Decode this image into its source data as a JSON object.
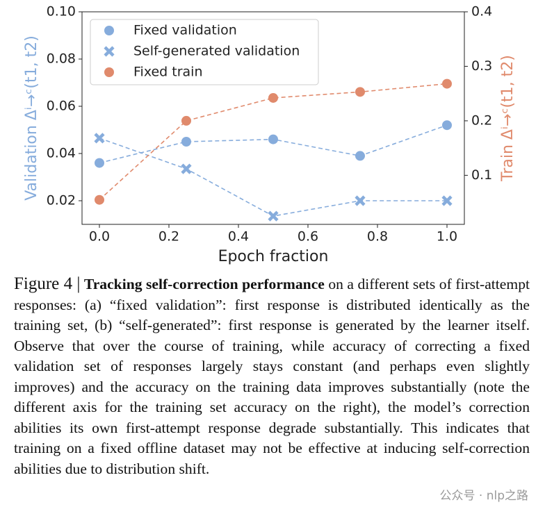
{
  "chart_data": {
    "type": "line",
    "xlabel": "Epoch fraction",
    "ylabel": "Validation Δⁱ→ᶜ(t1, t2)",
    "y2label": "Train Δⁱ→ᶜ(t1, t2)",
    "x": [
      0,
      0.25,
      0.5,
      0.75,
      1.0
    ],
    "xlim": [
      -0.05,
      1.05
    ],
    "xticks": [
      {
        "value": 0,
        "label": "0.0"
      },
      0.2,
      0.4,
      0.6,
      0.8,
      {
        "value": 1,
        "label": "1.0"
      }
    ],
    "ylim": [
      0.01,
      0.1
    ],
    "yticks": [
      0.02,
      0.04,
      0.06,
      0.08,
      {
        "value": 0.1,
        "label": "0.10"
      }
    ],
    "y2lim": [
      0.01,
      0.4
    ],
    "y2ticks": [
      0.1,
      0.2,
      0.3,
      0.4
    ],
    "ylabel_color": "#86acdc",
    "y2label_color": "#e08a6c",
    "linestyle": "dashed",
    "legend": "upper left",
    "series": [
      {
        "name": "Fixed validation",
        "color": "#86acdc",
        "marker": "circle",
        "values": [
          0.036,
          0.045,
          0.046,
          0.039,
          0.052
        ]
      },
      {
        "name": "Self-generated validation",
        "color": "#86acdc",
        "marker": "x",
        "values": [
          0.0465,
          0.0335,
          0.0135,
          0.02,
          0.02
        ]
      },
      {
        "name": "Fixed train",
        "color": "#e08a6c",
        "marker": "circle",
        "axis": "y2",
        "values": [
          0.055,
          0.2,
          0.242,
          0.253,
          0.268
        ]
      }
    ]
  },
  "caption": {
    "label": "Figure 4 |",
    "bold": "Tracking self-correction performance",
    "text": "on a different sets of first-attempt responses: (a) “fixed validation”: first response is distributed identically as the training set, (b) “self-generated”: first response is generated by the learner itself. Observe that over the course of training, while accuracy of correcting a fixed validation set of responses largely stays constant (and perhaps even slightly improves) and the accuracy on the training data improves substantially (note the different axis for the training set accuracy on the right), the model’s correction abilities its own first-attempt response degrade substantially. This indicates that training on a fixed offline dataset may not be effective at inducing self-correction abilities due to distribution shift."
  },
  "watermark": "公众号 · nlp之路"
}
